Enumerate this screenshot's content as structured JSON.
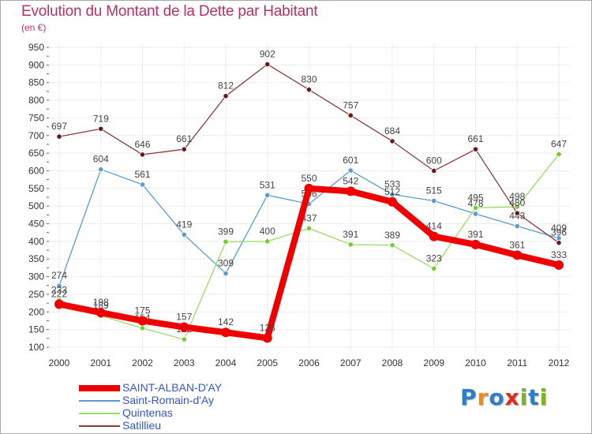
{
  "header": {
    "title": "Evolution du Montant de la Dette par Habitant",
    "subtitle": "(en €)"
  },
  "colors": {
    "title": "#b5316a",
    "axis_labels": "#333333",
    "grid": "#ededed"
  },
  "logo": {
    "letters": [
      "P",
      "r",
      "o",
      "x",
      "i",
      "t",
      "i"
    ],
    "colors": [
      "#2e7fc8",
      "#f08a1a",
      "#2e7fc8",
      "#e8281a",
      "#7ab51d",
      "#2e7fc8",
      "#7ab51d"
    ]
  },
  "chart_data": {
    "type": "line",
    "title": "Evolution du Montant de la Dette par Habitant",
    "subtitle": "(en €)",
    "xlabel": "",
    "ylabel": "",
    "x": [
      "2000",
      "2001",
      "2002",
      "2003",
      "2004",
      "2005",
      "2006",
      "2007",
      "2008",
      "2009",
      "2010",
      "2011",
      "2012"
    ],
    "ylim": [
      100,
      950
    ],
    "yticks": [
      100,
      150,
      200,
      250,
      300,
      350,
      400,
      450,
      500,
      550,
      600,
      650,
      700,
      750,
      800,
      850,
      900,
      950
    ],
    "grid": true,
    "legend_position": "bottom-left",
    "series": [
      {
        "name": "SAINT-ALBAN-D'AY",
        "color": "#ee0000",
        "marker_fill": "#ee0000",
        "emphasis": true,
        "values": [
          222,
          198,
          175,
          157,
          142,
          126,
          550,
          542,
          512,
          414,
          391,
          361,
          333
        ]
      },
      {
        "name": "Saint-Romain-d'Ay",
        "color": "#5a9bd4",
        "marker_fill": "#5a9bd4",
        "emphasis": false,
        "values": [
          274,
          604,
          561,
          419,
          309,
          531,
          506,
          601,
          533,
          515,
          478,
          443,
          409
        ]
      },
      {
        "name": "Quintenas",
        "color": "#99dd66",
        "marker_fill": "#77cc33",
        "emphasis": false,
        "values": [
          233,
          189,
          154,
          122,
          399,
          400,
          437,
          391,
          389,
          323,
          495,
          498,
          647
        ]
      },
      {
        "name": "Satillieu",
        "color": "#8b3a3a",
        "marker_fill": "#6b1a1a",
        "emphasis": false,
        "values": [
          697,
          719,
          646,
          661,
          812,
          902,
          830,
          757,
          684,
          600,
          661,
          480,
          396
        ]
      }
    ]
  }
}
